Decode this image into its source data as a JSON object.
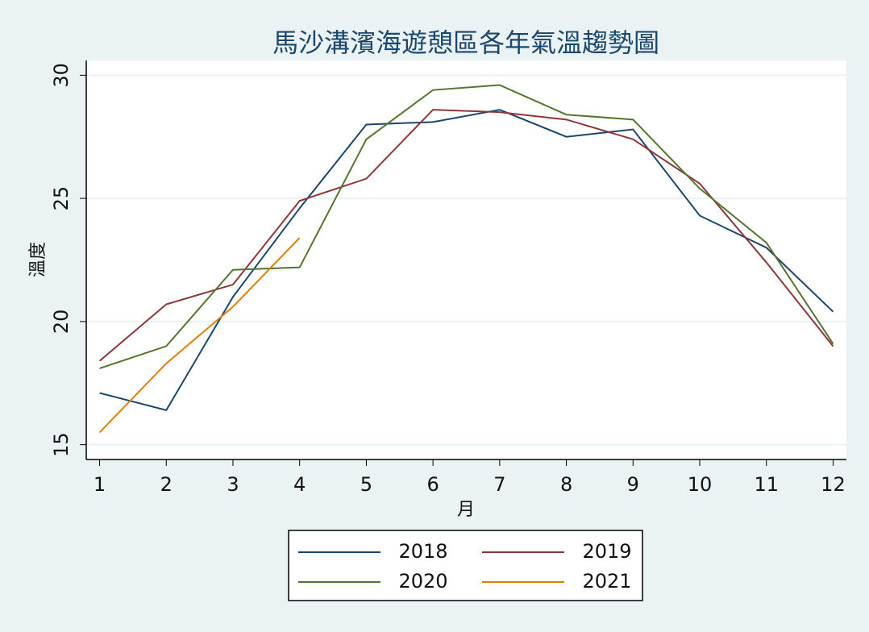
{
  "chart_data": {
    "type": "line",
    "title": "馬沙溝濱海遊憩區各年氣溫趨勢圖",
    "xlabel": "月",
    "ylabel": "溫度",
    "x": [
      1,
      2,
      3,
      4,
      5,
      6,
      7,
      8,
      9,
      10,
      11,
      12
    ],
    "series": [
      {
        "name": "2018",
        "color": "#1a476f",
        "values": [
          17.1,
          16.4,
          21.0,
          24.6,
          28.0,
          28.1,
          28.6,
          27.5,
          27.8,
          24.3,
          23.0,
          20.4
        ]
      },
      {
        "name": "2019",
        "color": "#90353b",
        "values": [
          18.4,
          20.7,
          21.5,
          24.9,
          25.8,
          28.6,
          28.5,
          28.2,
          27.4,
          25.6,
          22.4,
          19.0
        ]
      },
      {
        "name": "2020",
        "color": "#55752f",
        "values": [
          18.1,
          19.0,
          22.1,
          22.2,
          27.4,
          29.4,
          29.6,
          28.4,
          28.2,
          25.4,
          23.2,
          19.1
        ]
      },
      {
        "name": "2021",
        "color": "#e37e00",
        "values": [
          15.5,
          18.3,
          20.6,
          23.4,
          null,
          null,
          null,
          null,
          null,
          null,
          null,
          null
        ]
      }
    ],
    "xlim": [
      0.8,
      12.2
    ],
    "xticks": [
      1,
      2,
      3,
      4,
      5,
      6,
      7,
      8,
      9,
      10,
      11,
      12
    ],
    "ylim": [
      14.4,
      30.6
    ],
    "yticks": [
      15,
      20,
      25,
      30
    ],
    "grid": true,
    "legend": "bottom"
  }
}
